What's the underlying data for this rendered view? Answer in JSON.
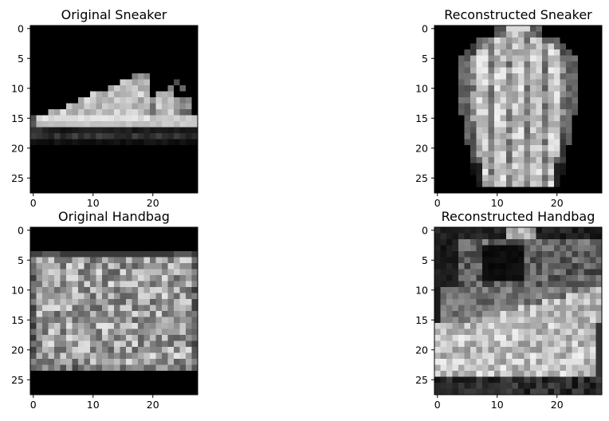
{
  "chart_data": [
    {
      "type": "heatmap",
      "title": "Original Sneaker",
      "colormap": "gray",
      "grid": false,
      "image_size": [
        28,
        28
      ],
      "xticks": [
        0,
        10,
        20
      ],
      "yticks": [
        0,
        5,
        10,
        15,
        20,
        25
      ],
      "xlim": [
        -0.5,
        27.5
      ],
      "ylim": [
        27.5,
        -0.5
      ],
      "image": "sneaker"
    },
    {
      "type": "heatmap",
      "title": "Reconstructed Sneaker",
      "colormap": "gray",
      "grid": false,
      "image_size": [
        28,
        28
      ],
      "xticks": [
        0,
        10,
        20
      ],
      "yticks": [
        0,
        5,
        10,
        15,
        20,
        25
      ],
      "xlim": [
        -0.5,
        27.5
      ],
      "ylim": [
        27.5,
        -0.5
      ],
      "image": "shirt"
    },
    {
      "type": "heatmap",
      "title": "Original Handbag",
      "colormap": "gray",
      "grid": false,
      "image_size": [
        28,
        28
      ],
      "xticks": [
        0,
        10,
        20
      ],
      "yticks": [
        0,
        5,
        10,
        15,
        20,
        25
      ],
      "xlim": [
        -0.5,
        27.5
      ],
      "ylim": [
        27.5,
        -0.5
      ],
      "image": "bag"
    },
    {
      "type": "heatmap",
      "title": "Reconstructed Handbag",
      "colormap": "gray",
      "grid": false,
      "image_size": [
        28,
        28
      ],
      "xticks": [
        0,
        10,
        20
      ],
      "yticks": [
        0,
        5,
        10,
        15,
        20,
        25
      ],
      "xlim": [
        -0.5,
        27.5
      ],
      "ylim": [
        27.5,
        -0.5
      ],
      "image": "handbag_shoe"
    }
  ]
}
